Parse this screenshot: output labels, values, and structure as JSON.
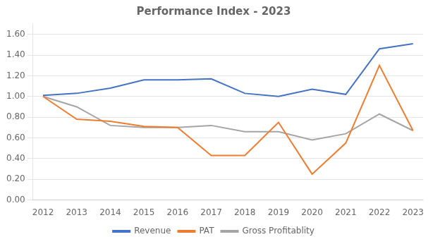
{
  "chart_data": {
    "type": "line",
    "title": "Performance Index - 2023",
    "x": [
      2012,
      2013,
      2014,
      2015,
      2016,
      2017,
      2018,
      2019,
      2020,
      2021,
      2022,
      2023
    ],
    "series": [
      {
        "name": "Revenue",
        "color": "#4472C4",
        "values": [
          1.01,
          1.03,
          1.08,
          1.16,
          1.16,
          1.17,
          1.03,
          1.0,
          1.07,
          1.02,
          1.46,
          1.51
        ]
      },
      {
        "name": "PAT",
        "color": "#ED7D31",
        "values": [
          1.0,
          0.78,
          0.76,
          0.71,
          0.7,
          0.43,
          0.43,
          0.75,
          0.25,
          0.55,
          1.3,
          0.67
        ]
      },
      {
        "name": "Gross Profitablity",
        "color": "#A5A5A5",
        "values": [
          1.0,
          0.9,
          0.72,
          0.7,
          0.7,
          0.72,
          0.66,
          0.66,
          0.58,
          0.64,
          0.83,
          0.67
        ]
      }
    ],
    "xlim": [
      2011.7,
      2023.3
    ],
    "xticks": [
      2012,
      2013,
      2014,
      2015,
      2016,
      2017,
      2018,
      2019,
      2020,
      2021,
      2022,
      2023
    ],
    "ylim": [
      0.0,
      1.7
    ],
    "yticks": [
      {
        "value": 0,
        "label": "0.00"
      },
      {
        "value": 0.2,
        "label": "0.20"
      },
      {
        "value": 0.4,
        "label": "0.40"
      },
      {
        "value": 0.6,
        "label": "0.60"
      },
      {
        "value": 0.8,
        "label": "0.80"
      },
      {
        "value": 1.0,
        "label": "1.00"
      },
      {
        "value": 1.2,
        "label": "1.20"
      },
      {
        "value": 1.4,
        "label": "1.40"
      },
      {
        "value": 1.6,
        "label": "1.60"
      }
    ],
    "grid": "y",
    "legend": "bottom"
  }
}
